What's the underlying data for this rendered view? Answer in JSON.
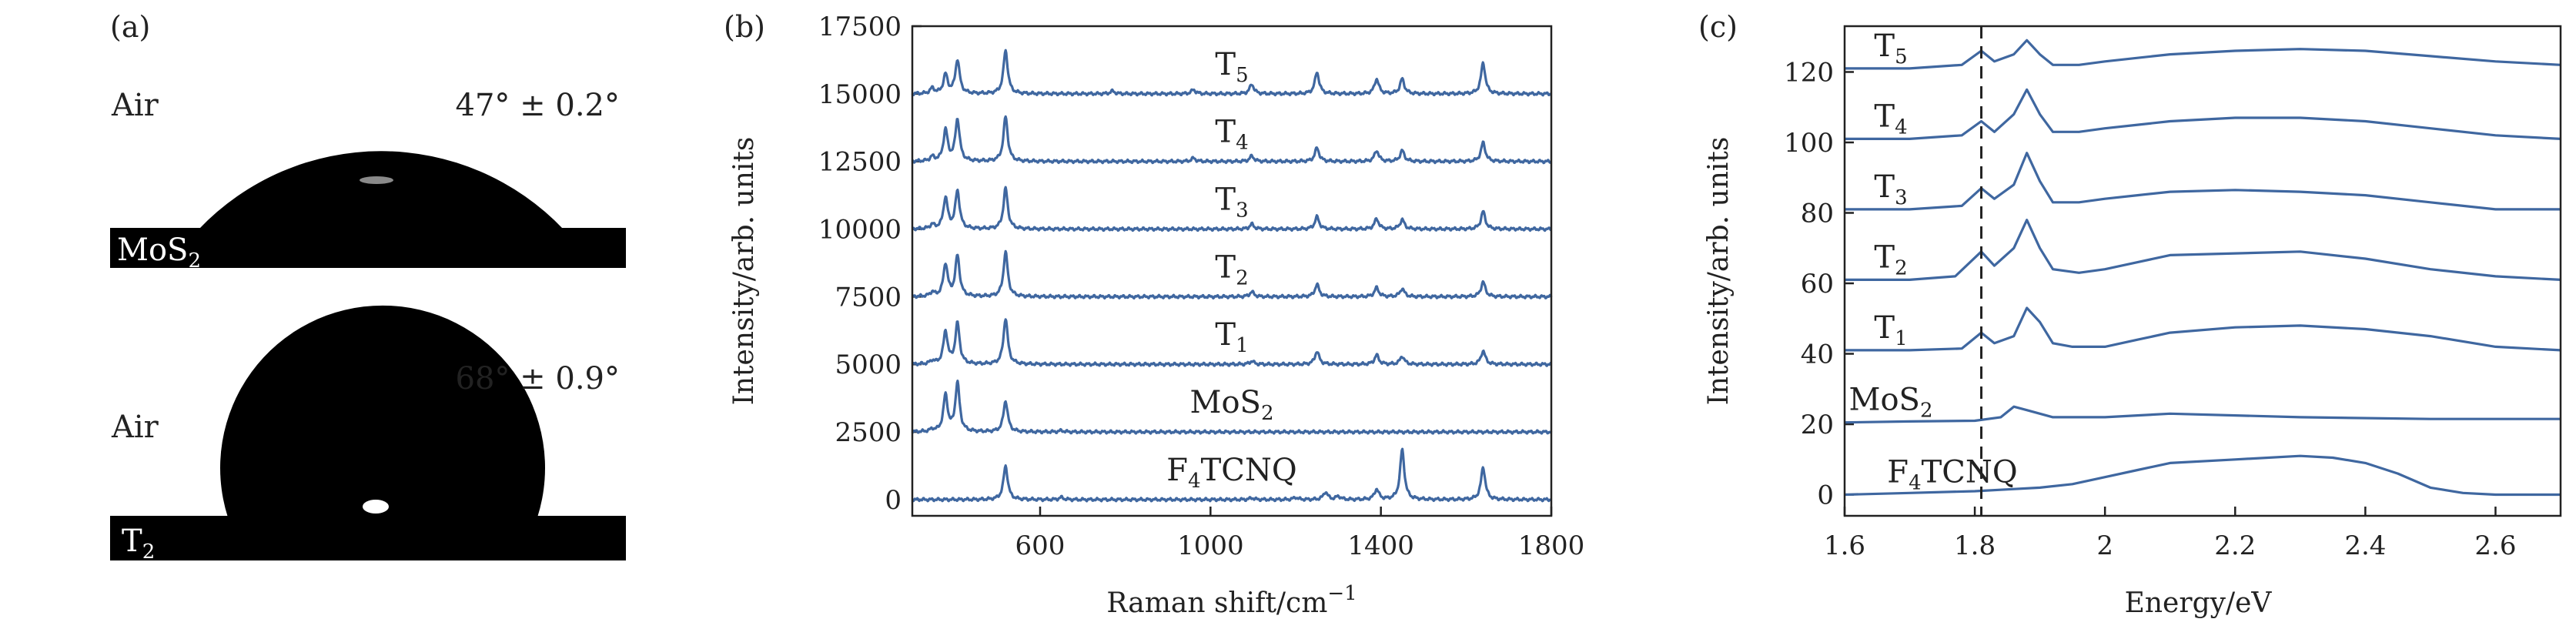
{
  "panel_a": {
    "label": "(a)",
    "rows": [
      {
        "env": "Air",
        "angle": "47° ± 0.2°",
        "sample": "MoS",
        "sample_sub": "2",
        "contact_angle_deg": 47
      },
      {
        "env": "Air",
        "angle": "68° ± 0.9°",
        "sample": "T",
        "sample_sub": "2",
        "contact_angle_deg": 68
      }
    ]
  },
  "chart_data": [
    {
      "panel": "(b)",
      "type": "line",
      "xlabel": "Raman shift/cm",
      "xlabel_sup": "−1",
      "ylabel": "Intensity/arb. units",
      "xlim": [
        300,
        1800
      ],
      "ylim": [
        -600,
        17500
      ],
      "xticks": [
        600,
        1000,
        1400,
        1800
      ],
      "yticks": [
        0,
        2500,
        5000,
        7500,
        10000,
        12500,
        15000,
        17500
      ],
      "peaks_cm": [
        347,
        378,
        406,
        519,
        650,
        770,
        960,
        1097,
        1250,
        1270,
        1300,
        1390,
        1450,
        1640
      ],
      "series": [
        {
          "name": "F",
          "sub": "4",
          "name_rest": "TCNQ",
          "baseline": 0,
          "peaks": [
            [
              519,
              1250
            ],
            [
              650,
              80
            ],
            [
              1097,
              60
            ],
            [
              1200,
              80
            ],
            [
              1270,
              280
            ],
            [
              1300,
              120
            ],
            [
              1390,
              380
            ],
            [
              1450,
              1850
            ],
            [
              1640,
              1200
            ]
          ]
        },
        {
          "name": "MoS",
          "sub": "2",
          "baseline": 2500,
          "peaks": [
            [
              347,
              80
            ],
            [
              378,
              1350
            ],
            [
              406,
              1800
            ],
            [
              519,
              1150
            ],
            [
              650,
              50
            ]
          ]
        },
        {
          "name": "T",
          "sub": "1",
          "baseline": 5000,
          "peaks": [
            [
              347,
              120
            ],
            [
              378,
              1200
            ],
            [
              406,
              1500
            ],
            [
              519,
              1700
            ],
            [
              1097,
              120
            ],
            [
              1250,
              480
            ],
            [
              1390,
              340
            ],
            [
              1450,
              300
            ],
            [
              1640,
              500
            ]
          ]
        },
        {
          "name": "T",
          "sub": "2",
          "baseline": 7500,
          "peaks": [
            [
              347,
              150
            ],
            [
              378,
              1200
            ],
            [
              406,
              1500
            ],
            [
              519,
              1650
            ],
            [
              1097,
              180
            ],
            [
              1250,
              450
            ],
            [
              1390,
              330
            ],
            [
              1450,
              300
            ],
            [
              1640,
              550
            ]
          ]
        },
        {
          "name": "T",
          "sub": "3",
          "baseline": 10000,
          "peaks": [
            [
              347,
              150
            ],
            [
              378,
              1150
            ],
            [
              406,
              1400
            ],
            [
              519,
              1500
            ],
            [
              1097,
              180
            ],
            [
              1250,
              450
            ],
            [
              1390,
              380
            ],
            [
              1450,
              350
            ],
            [
              1640,
              650
            ]
          ]
        },
        {
          "name": "T",
          "sub": "4",
          "baseline": 12500,
          "peaks": [
            [
              347,
              160
            ],
            [
              378,
              1150
            ],
            [
              406,
              1550
            ],
            [
              519,
              1650
            ],
            [
              960,
              120
            ],
            [
              1097,
              200
            ],
            [
              1250,
              500
            ],
            [
              1390,
              400
            ],
            [
              1450,
              400
            ],
            [
              1640,
              700
            ]
          ]
        },
        {
          "name": "T",
          "sub": "5",
          "baseline": 15000,
          "peaks": [
            [
              347,
              200
            ],
            [
              378,
              700
            ],
            [
              406,
              1250
            ],
            [
              519,
              1600
            ],
            [
              770,
              100
            ],
            [
              960,
              150
            ],
            [
              1097,
              350
            ],
            [
              1250,
              800
            ],
            [
              1390,
              550
            ],
            [
              1450,
              550
            ],
            [
              1640,
              1150
            ]
          ]
        }
      ]
    },
    {
      "panel": "(c)",
      "type": "line",
      "xlabel": "Energy/eV",
      "ylabel": "Intensity/arb. units",
      "xlim": [
        1.6,
        2.7
      ],
      "ylim": [
        -6,
        133
      ],
      "xticks": [
        1.6,
        1.8,
        2.0,
        2.2,
        2.4,
        2.6
      ],
      "yticks": [
        0,
        20,
        40,
        60,
        80,
        100,
        120
      ],
      "dashed_line_x": 1.81,
      "series": [
        {
          "name": "F",
          "sub": "4",
          "name_rest": "TCNQ",
          "points": [
            [
              1.6,
              0
            ],
            [
              1.7,
              0.5
            ],
            [
              1.8,
              1
            ],
            [
              1.85,
              1.5
            ],
            [
              1.9,
              2
            ],
            [
              1.95,
              3
            ],
            [
              2.0,
              5
            ],
            [
              2.05,
              7
            ],
            [
              2.1,
              9
            ],
            [
              2.2,
              10
            ],
            [
              2.3,
              11
            ],
            [
              2.35,
              10.5
            ],
            [
              2.4,
              9
            ],
            [
              2.45,
              6
            ],
            [
              2.5,
              2
            ],
            [
              2.55,
              0.5
            ],
            [
              2.6,
              0
            ],
            [
              2.7,
              0
            ]
          ]
        },
        {
          "name": "MoS",
          "sub": "2",
          "points": [
            [
              1.6,
              20.5
            ],
            [
              1.7,
              20.8
            ],
            [
              1.8,
              21
            ],
            [
              1.84,
              22
            ],
            [
              1.86,
              25
            ],
            [
              1.88,
              24
            ],
            [
              1.92,
              22
            ],
            [
              2.0,
              22
            ],
            [
              2.1,
              23
            ],
            [
              2.3,
              22
            ],
            [
              2.5,
              21.5
            ],
            [
              2.7,
              21.5
            ]
          ]
        },
        {
          "name": "T",
          "sub": "1",
          "points": [
            [
              1.6,
              41
            ],
            [
              1.7,
              41
            ],
            [
              1.78,
              41.5
            ],
            [
              1.81,
              46
            ],
            [
              1.83,
              43
            ],
            [
              1.86,
              45
            ],
            [
              1.88,
              53
            ],
            [
              1.9,
              49
            ],
            [
              1.92,
              43
            ],
            [
              1.95,
              42
            ],
            [
              2.0,
              42
            ],
            [
              2.05,
              44
            ],
            [
              2.1,
              46
            ],
            [
              2.2,
              47.5
            ],
            [
              2.3,
              48
            ],
            [
              2.4,
              47
            ],
            [
              2.5,
              45
            ],
            [
              2.6,
              42
            ],
            [
              2.7,
              41
            ]
          ]
        },
        {
          "name": "T",
          "sub": "2",
          "points": [
            [
              1.6,
              61
            ],
            [
              1.7,
              61
            ],
            [
              1.77,
              62
            ],
            [
              1.81,
              69
            ],
            [
              1.83,
              65
            ],
            [
              1.86,
              70
            ],
            [
              1.88,
              78
            ],
            [
              1.9,
              70
            ],
            [
              1.92,
              64
            ],
            [
              1.96,
              63
            ],
            [
              2.0,
              64
            ],
            [
              2.05,
              66
            ],
            [
              2.1,
              68
            ],
            [
              2.2,
              68.5
            ],
            [
              2.3,
              69
            ],
            [
              2.4,
              67
            ],
            [
              2.5,
              64
            ],
            [
              2.6,
              62
            ],
            [
              2.7,
              61
            ]
          ]
        },
        {
          "name": "T",
          "sub": "3",
          "points": [
            [
              1.6,
              81
            ],
            [
              1.7,
              81
            ],
            [
              1.78,
              82
            ],
            [
              1.81,
              87
            ],
            [
              1.83,
              84
            ],
            [
              1.86,
              88
            ],
            [
              1.88,
              97
            ],
            [
              1.9,
              89
            ],
            [
              1.92,
              83
            ],
            [
              1.96,
              83
            ],
            [
              2.0,
              84
            ],
            [
              2.05,
              85
            ],
            [
              2.1,
              86
            ],
            [
              2.2,
              86.5
            ],
            [
              2.3,
              86
            ],
            [
              2.4,
              85
            ],
            [
              2.5,
              83
            ],
            [
              2.6,
              81
            ],
            [
              2.7,
              81
            ]
          ]
        },
        {
          "name": "T",
          "sub": "4",
          "points": [
            [
              1.6,
              101
            ],
            [
              1.7,
              101
            ],
            [
              1.78,
              102
            ],
            [
              1.81,
              106
            ],
            [
              1.83,
              103
            ],
            [
              1.86,
              108
            ],
            [
              1.88,
              115
            ],
            [
              1.9,
              108
            ],
            [
              1.92,
              103
            ],
            [
              1.96,
              103
            ],
            [
              2.0,
              104
            ],
            [
              2.05,
              105
            ],
            [
              2.1,
              106
            ],
            [
              2.2,
              107
            ],
            [
              2.3,
              107
            ],
            [
              2.4,
              106
            ],
            [
              2.5,
              104
            ],
            [
              2.6,
              102
            ],
            [
              2.7,
              101
            ]
          ]
        },
        {
          "name": "T",
          "sub": "5",
          "points": [
            [
              1.6,
              121
            ],
            [
              1.7,
              121
            ],
            [
              1.78,
              122
            ],
            [
              1.81,
              126
            ],
            [
              1.83,
              123
            ],
            [
              1.86,
              125
            ],
            [
              1.88,
              129
            ],
            [
              1.9,
              125
            ],
            [
              1.92,
              122
            ],
            [
              1.96,
              122
            ],
            [
              2.0,
              123
            ],
            [
              2.05,
              124
            ],
            [
              2.1,
              125
            ],
            [
              2.2,
              126
            ],
            [
              2.3,
              126.5
            ],
            [
              2.4,
              126
            ],
            [
              2.5,
              124.5
            ],
            [
              2.6,
              123
            ],
            [
              2.7,
              122
            ]
          ]
        }
      ]
    }
  ]
}
